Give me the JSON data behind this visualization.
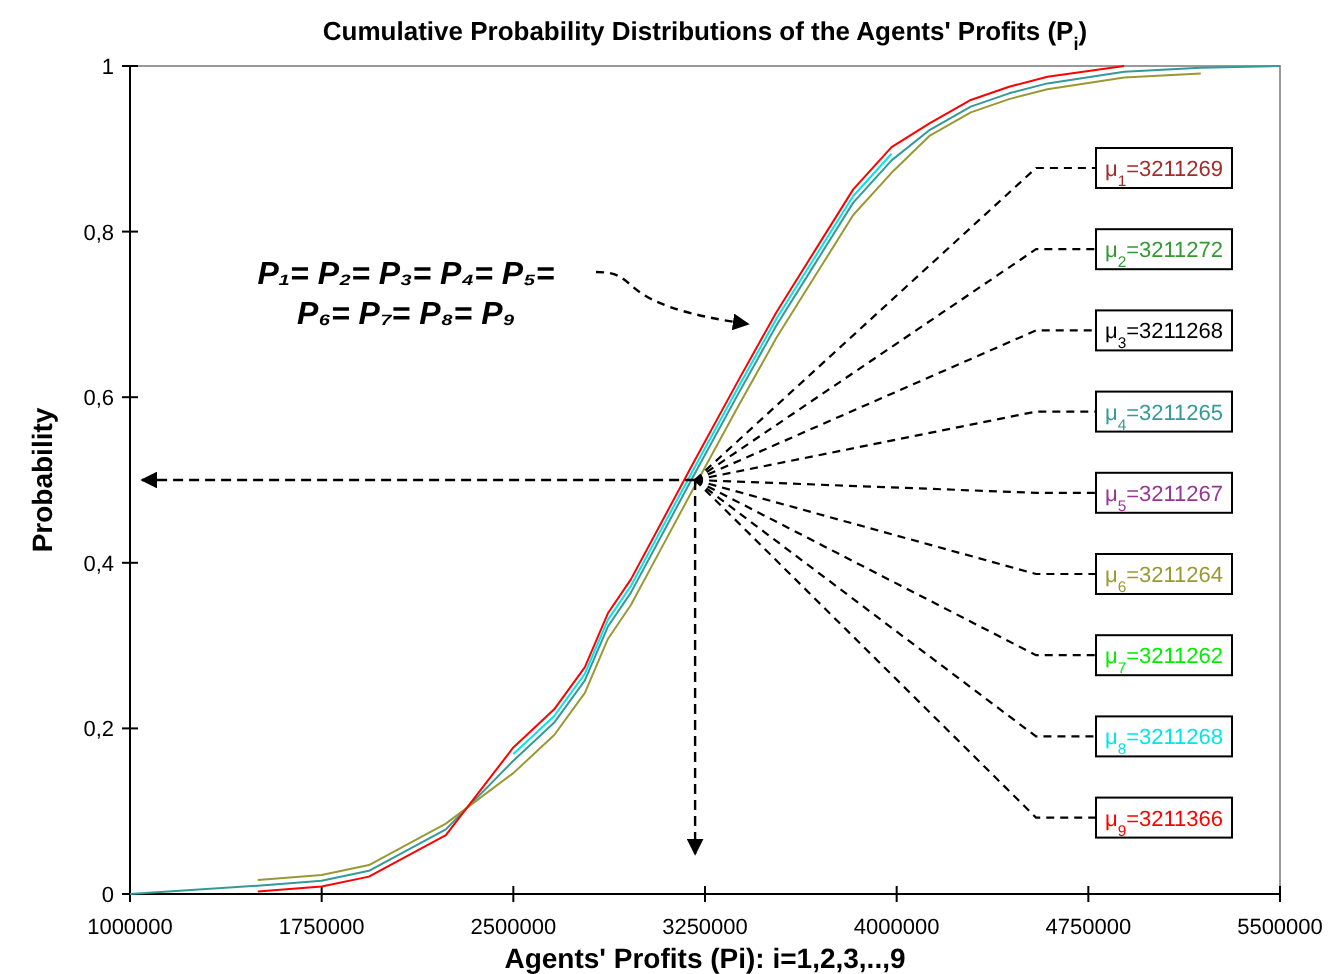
{
  "chart_data": {
    "type": "line",
    "title": "Cumulative Probability Distributions of the Agents' Profits (P$_{i}$)",
    "xlabel": "Agents' Profits (Pi): i=1,2,3,..,9",
    "ylabel": "Probability",
    "x": [
      1000000,
      1500000,
      1750000,
      1935000,
      2236000,
      2500000,
      2660000,
      2780000,
      2870000,
      2960000,
      3080000,
      3200000,
      3380000,
      3530000,
      3680000,
      3830000,
      3980000,
      4130000,
      4290000,
      4440000,
      4590000,
      4890000,
      5190000,
      5500000
    ],
    "series": [
      {
        "name": "μ$_{1}$=3211269",
        "color": "#a52a2a",
        "values": [
          null,
          null,
          null,
          null,
          null,
          null,
          null,
          null,
          null,
          null,
          null,
          null,
          null,
          null,
          null,
          null,
          null,
          null,
          null,
          null,
          null,
          null,
          null,
          null
        ]
      },
      {
        "name": "μ$_{2}$=3211272",
        "color": "#339933",
        "values": [
          null,
          null,
          null,
          null,
          null,
          null,
          null,
          null,
          null,
          null,
          null,
          null,
          null,
          null,
          null,
          null,
          null,
          null,
          null,
          null,
          null,
          null,
          null,
          null
        ]
      },
      {
        "name": "μ$_{3}$=3211268",
        "color": "#000000",
        "values": [
          null,
          null,
          null,
          null,
          null,
          null,
          null,
          null,
          null,
          null,
          null,
          null,
          null,
          null,
          null,
          null,
          null,
          null,
          null,
          null,
          null,
          null,
          null,
          null
        ]
      },
      {
        "name": "μ$_{4}$=3211265",
        "color": "#339999",
        "values": [
          0,
          0.01,
          0.016,
          0.028,
          0.078,
          0.161,
          0.207,
          0.258,
          0.323,
          0.364,
          0.433,
          0.502,
          0.604,
          0.687,
          0.761,
          0.835,
          0.886,
          0.923,
          0.951,
          0.967,
          0.979,
          0.993,
          0.998,
          1
        ]
      },
      {
        "name": "μ$_{5}$=3211267",
        "color": "#993399",
        "values": [
          null,
          null,
          null,
          null,
          null,
          null,
          null,
          null,
          null,
          null,
          null,
          null,
          null,
          null,
          null,
          null,
          null,
          null,
          null,
          null,
          null,
          null,
          null,
          null
        ]
      },
      {
        "name": "μ$_{6}$=3211264",
        "color": "#999933",
        "values": [
          null,
          0.017,
          0.023,
          0.035,
          0.085,
          0.146,
          0.192,
          0.243,
          0.308,
          0.349,
          0.418,
          0.487,
          0.589,
          0.672,
          0.746,
          0.82,
          0.871,
          0.916,
          0.944,
          0.96,
          0.972,
          0.986,
          0.991,
          null
        ]
      },
      {
        "name": "μ$_{7}$=3211262",
        "color": "#00ee00",
        "values": [
          null,
          null,
          null,
          null,
          null,
          null,
          null,
          null,
          null,
          null,
          null,
          null,
          null,
          null,
          null,
          null,
          null,
          null,
          null,
          null,
          null,
          null,
          null,
          null
        ]
      },
      {
        "name": "μ$_{8}$=3211268",
        "color": "#00e5ee",
        "values": [
          null,
          null,
          null,
          null,
          null,
          0.169,
          0.215,
          0.266,
          0.331,
          0.372,
          0.441,
          0.51,
          0.612,
          0.695,
          0.769,
          0.843,
          0.894,
          null,
          null,
          null,
          null,
          null,
          null,
          null
        ]
      },
      {
        "name": "μ$_{9}$=3211366",
        "color": "#ff0000",
        "values": [
          null,
          0.003,
          0.009,
          0.021,
          0.071,
          0.177,
          0.223,
          0.274,
          0.339,
          0.38,
          0.449,
          0.518,
          0.62,
          0.703,
          0.777,
          0.851,
          0.902,
          0.931,
          0.959,
          0.975,
          0.987,
          1,
          null,
          null
        ]
      }
    ],
    "annotations": [
      "P₁= P₂= P₃= P₄= P₅=",
      "P₆= P₇= P₈= P₉"
    ],
    "ref_lines": [
      {
        "axis": "y",
        "value": 0.5,
        "line_style": "dashed"
      },
      {
        "axis": "x",
        "value": 3211269,
        "line_style": "dashed"
      }
    ],
    "xlim": [
      1000000,
      5500000
    ],
    "xticks": [
      1000000,
      1750000,
      2500000,
      3250000,
      4000000,
      4750000,
      5500000
    ],
    "ylim": [
      0,
      1
    ],
    "yticks": [
      0,
      {
        "value": 0.2,
        "label": "0,2"
      },
      {
        "value": 0.4,
        "label": "0,4"
      },
      {
        "value": 0.6,
        "label": "0,6"
      },
      {
        "value": 0.8,
        "label": "0,8"
      },
      1
    ],
    "grid": false,
    "legend": "right",
    "marker": "none",
    "line_style": "solid"
  }
}
